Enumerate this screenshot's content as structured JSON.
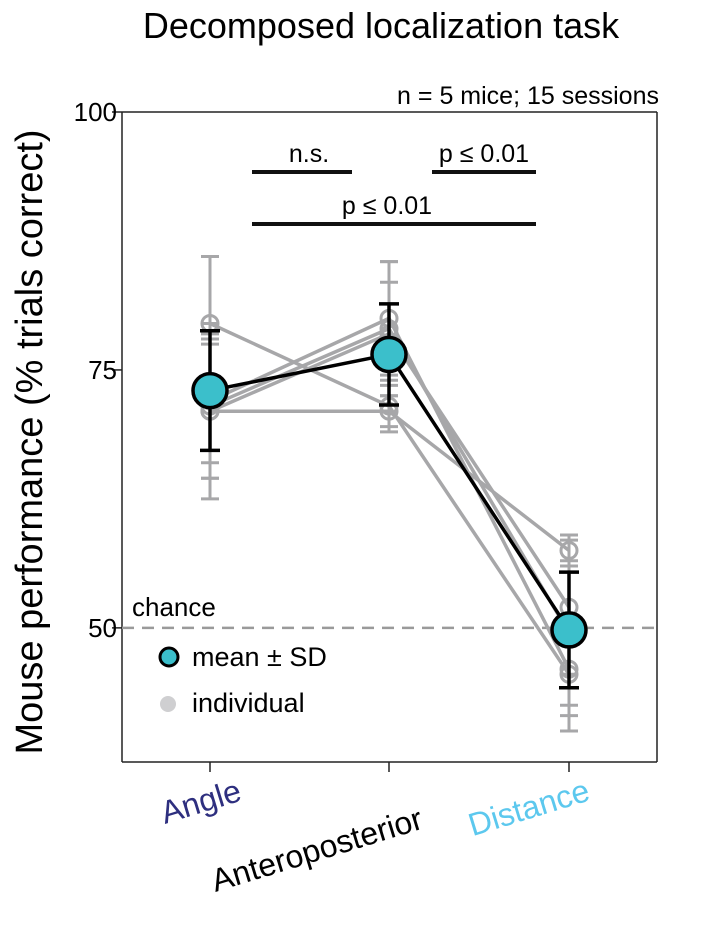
{
  "chart_data": {
    "type": "line",
    "title": "Decomposed localization task",
    "subtitle": "n = 5 mice; 15 sessions",
    "ylabel": "Mouse performance (% trials correct)",
    "xlabel": "",
    "ylim": [
      37,
      100
    ],
    "yticks": [
      50,
      75,
      100
    ],
    "categories": [
      "Angle",
      "Anteroposterior",
      "Distance"
    ],
    "category_colors": [
      "#2e2f7f",
      "#000000",
      "#5cc8ee"
    ],
    "chance": {
      "label": "chance",
      "value": 50
    },
    "mean_series": {
      "values": [
        73,
        76.5,
        49.8
      ],
      "sd": [
        5.8,
        4.9,
        5.6
      ],
      "color": "#3bbfcb"
    },
    "individual_series": [
      {
        "values": [
          79.5,
          71.5,
          45.5
        ],
        "sd": [
          6.5,
          2.5,
          5.5
        ]
      },
      {
        "values": [
          71,
          78.5,
          52
        ],
        "sd": [
          6.5,
          5,
          6.5
        ]
      },
      {
        "values": [
          72,
          80,
          46
        ],
        "sd": [
          6,
          5.5,
          4.5
        ]
      },
      {
        "values": [
          71,
          71,
          57.5
        ],
        "sd": [
          8.5,
          1.5,
          1.5
        ]
      },
      {
        "values": [
          71.5,
          79,
          49.5
        ],
        "sd": [
          7,
          6.5,
          7
        ]
      }
    ],
    "individual_color": "#a7a7a9",
    "significance": [
      {
        "label": "n.s.",
        "from": 0,
        "to": 1,
        "level": 1
      },
      {
        "label": "p ≤ 0.01",
        "from": 1,
        "to": 2,
        "level": 1
      },
      {
        "label": "p ≤ 0.01",
        "from": 0,
        "to": 2,
        "level": 2
      }
    ],
    "legend": {
      "position": "bottom-left",
      "entries": [
        {
          "label": "mean ± SD",
          "kind": "mean"
        },
        {
          "label": "individual",
          "kind": "individual"
        }
      ]
    },
    "grid": false
  }
}
